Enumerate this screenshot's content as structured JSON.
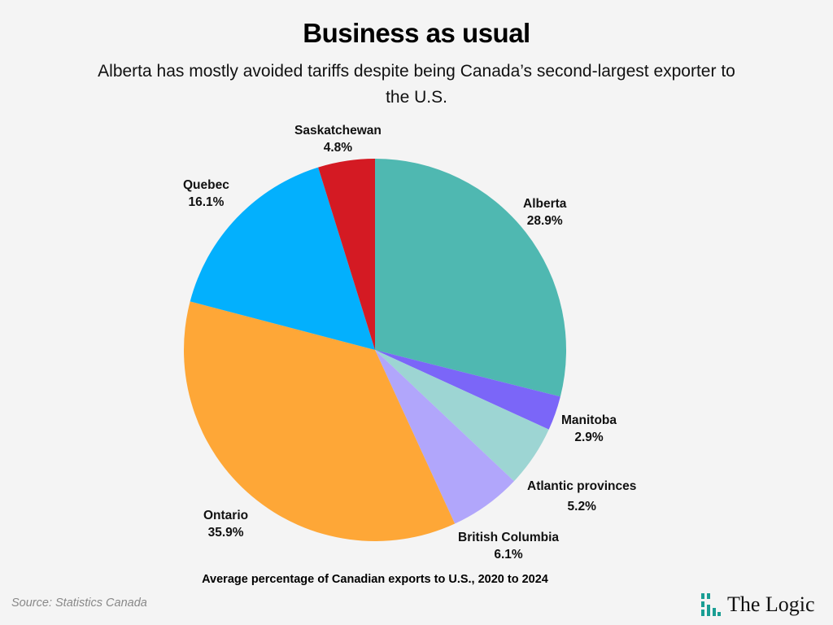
{
  "header": {
    "title": "Business as usual",
    "subtitle": "Alberta has mostly avoided tariffs despite being Canada’s second-largest exporter to the U.S."
  },
  "footer": {
    "caption": "Average percentage of Canadian exports to U.S., 2020 to 2024",
    "source": "Source: Statistics Canada",
    "logo_text": "The Logic",
    "logo_color": "#1a9e94"
  },
  "labels": {
    "alberta": {
      "name": "Alberta",
      "value": "28.9%"
    },
    "manitoba": {
      "name": "Manitoba",
      "value": "2.9%"
    },
    "atlantic": {
      "name": "Atlantic provinces",
      "value": "5.2%"
    },
    "bc": {
      "name": "British Columbia",
      "value": "6.1%"
    },
    "ontario": {
      "name": "Ontario",
      "value": "35.9%"
    },
    "quebec": {
      "name": "Quebec",
      "value": "16.1%"
    },
    "saskatchewan": {
      "name": "Saskatchewan",
      "value": "4.8%"
    }
  },
  "chart_data": {
    "type": "pie",
    "title": "Business as usual",
    "subtitle": "Alberta has mostly avoided tariffs despite being Canada’s second-largest exporter to the U.S.",
    "caption": "Average percentage of Canadian exports to U.S., 2020 to 2024",
    "source": "Source: Statistics Canada",
    "start_angle": "12 o'clock, clockwise",
    "categories": [
      "Alberta",
      "Manitoba",
      "Atlantic provinces",
      "British Columbia",
      "Ontario",
      "Quebec",
      "Saskatchewan"
    ],
    "values": [
      28.9,
      2.9,
      5.2,
      6.1,
      35.9,
      16.1,
      4.8
    ],
    "colors": [
      "#4fb8b1",
      "#7b66f8",
      "#9dd5d3",
      "#b1a6fb",
      "#fea737",
      "#03b0fd",
      "#d41a23"
    ],
    "unit": "%",
    "legend": "none (direct labels)"
  }
}
